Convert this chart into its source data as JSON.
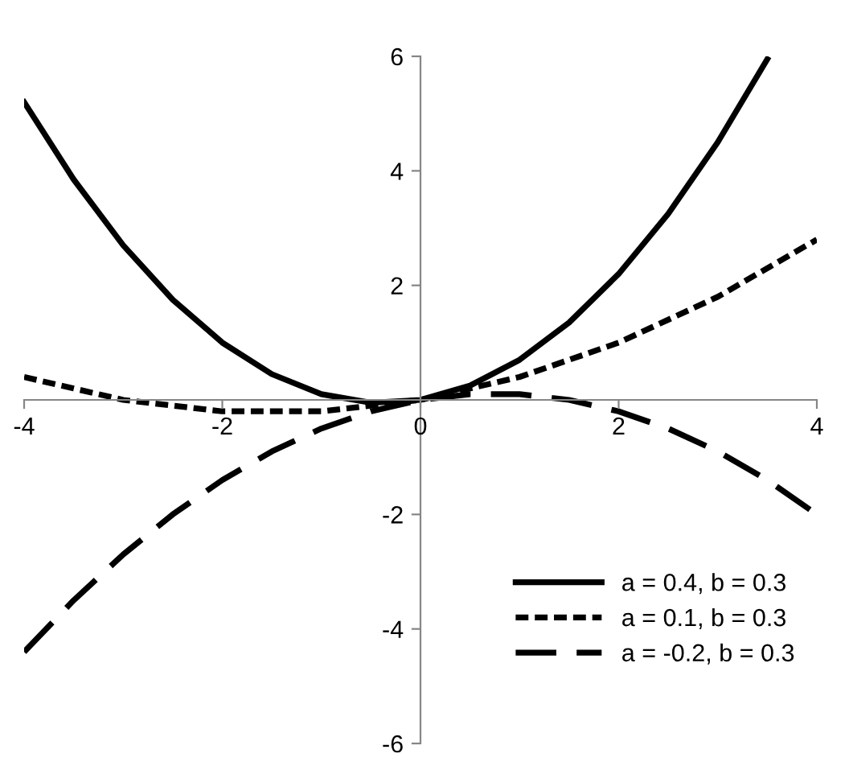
{
  "chart_data": {
    "type": "line",
    "x": [
      -4,
      -3.5,
      -3,
      -2.5,
      -2,
      -1.5,
      -1,
      -0.5,
      0,
      0.5,
      1,
      1.5,
      2,
      2.5,
      3,
      3.5,
      4
    ],
    "series": [
      {
        "name": "a = 0.4, b = 0.3",
        "color": "#000000",
        "line_style": "solid",
        "values": [
          5.2,
          3.85,
          2.7,
          1.75,
          1.0,
          0.45,
          0.1,
          -0.05,
          0,
          0.25,
          0.7,
          1.35,
          2.2,
          3.25,
          4.5,
          5.95,
          null
        ]
      },
      {
        "name": "a = 0.1, b = 0.3",
        "color": "#000000",
        "line_style": "dotted",
        "values": [
          0.4,
          0.2,
          0,
          -0.1,
          -0.2,
          -0.2,
          -0.2,
          -0.1,
          0,
          0.2,
          0.4,
          0.7,
          1.0,
          1.4,
          1.8,
          2.3,
          2.8
        ]
      },
      {
        "name": "a = -0.2, b = 0.3",
        "color": "#000000",
        "line_style": "dashed",
        "values": [
          -4.4,
          -3.5,
          -2.7,
          -2.0,
          -1.4,
          -0.9,
          -0.5,
          -0.2,
          0,
          0.1,
          0.1,
          0,
          -0.2,
          -0.5,
          -0.9,
          -1.4,
          -2.0
        ]
      }
    ],
    "xlim": [
      -4,
      4
    ],
    "ylim": [
      -6,
      6
    ],
    "xticks": [
      -4,
      -2,
      0,
      2,
      4
    ],
    "yticks": [
      -6,
      -4,
      -2,
      {
        "value": 0,
        "label": null
      },
      2,
      4,
      6
    ],
    "grid": false,
    "legend": "bottom right",
    "marker": "none"
  }
}
